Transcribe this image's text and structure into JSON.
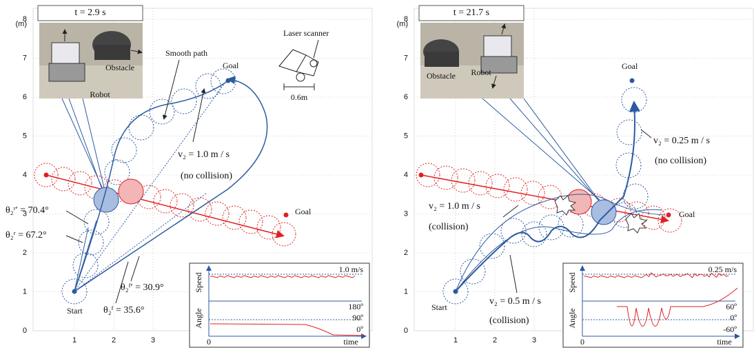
{
  "panels": [
    {
      "time": "t = 2.9 s",
      "unit": "(m)",
      "yticks": [
        8,
        7,
        6,
        5,
        4,
        3,
        2,
        1,
        0
      ],
      "xticks": [
        1,
        2,
        3
      ],
      "photo": {
        "robot": "Robot",
        "obstacle": "Obstacle"
      },
      "labels": {
        "start": "Start",
        "goal_robot": "Goal",
        "goal_obstacle": "Goal",
        "smooth_path": "Smooth path",
        "laser_scanner": "Laser scanner",
        "scale": "0.6m"
      },
      "annotations": [
        "v₂ = 1.0 m / s",
        "(no collision)",
        "θ₂ʳ′ = 70.4°",
        "θ₂ʳ = 67.2°",
        "θ₂ᶠ′ = 30.9°",
        "θ₂ᶠ = 35.6°"
      ],
      "inset": {
        "speed_axis": "Speed",
        "angle_axis": "Angle",
        "speed_ref": "1.0 m/s",
        "angle_ticks": [
          "180º",
          "90º",
          "0º"
        ],
        "origin": "0",
        "time_axis": "time"
      }
    },
    {
      "time": "t = 21.7 s",
      "unit": "(m)",
      "yticks": [
        8,
        7,
        6,
        5,
        4,
        3,
        2,
        1,
        0
      ],
      "xticks": [
        1,
        2,
        3
      ],
      "photo": {
        "robot": "Robot",
        "obstacle": "Obstacle"
      },
      "labels": {
        "start": "Start",
        "goal_robot": "Goal",
        "goal_obstacle": "Goal"
      },
      "annotations": [
        "v₂ = 0.25 m / s",
        "(no collision)",
        "v₂ = 1.0 m / s",
        "(collision)",
        "v₂ = 0.5 m / s",
        "(collision)"
      ],
      "inset": {
        "speed_axis": "Speed",
        "angle_axis": "Angle",
        "speed_ref": "0.25 m/s",
        "angle_ticks": [
          "60º",
          "0º",
          "-60º"
        ],
        "origin": "0",
        "time_axis": "time"
      }
    }
  ]
}
